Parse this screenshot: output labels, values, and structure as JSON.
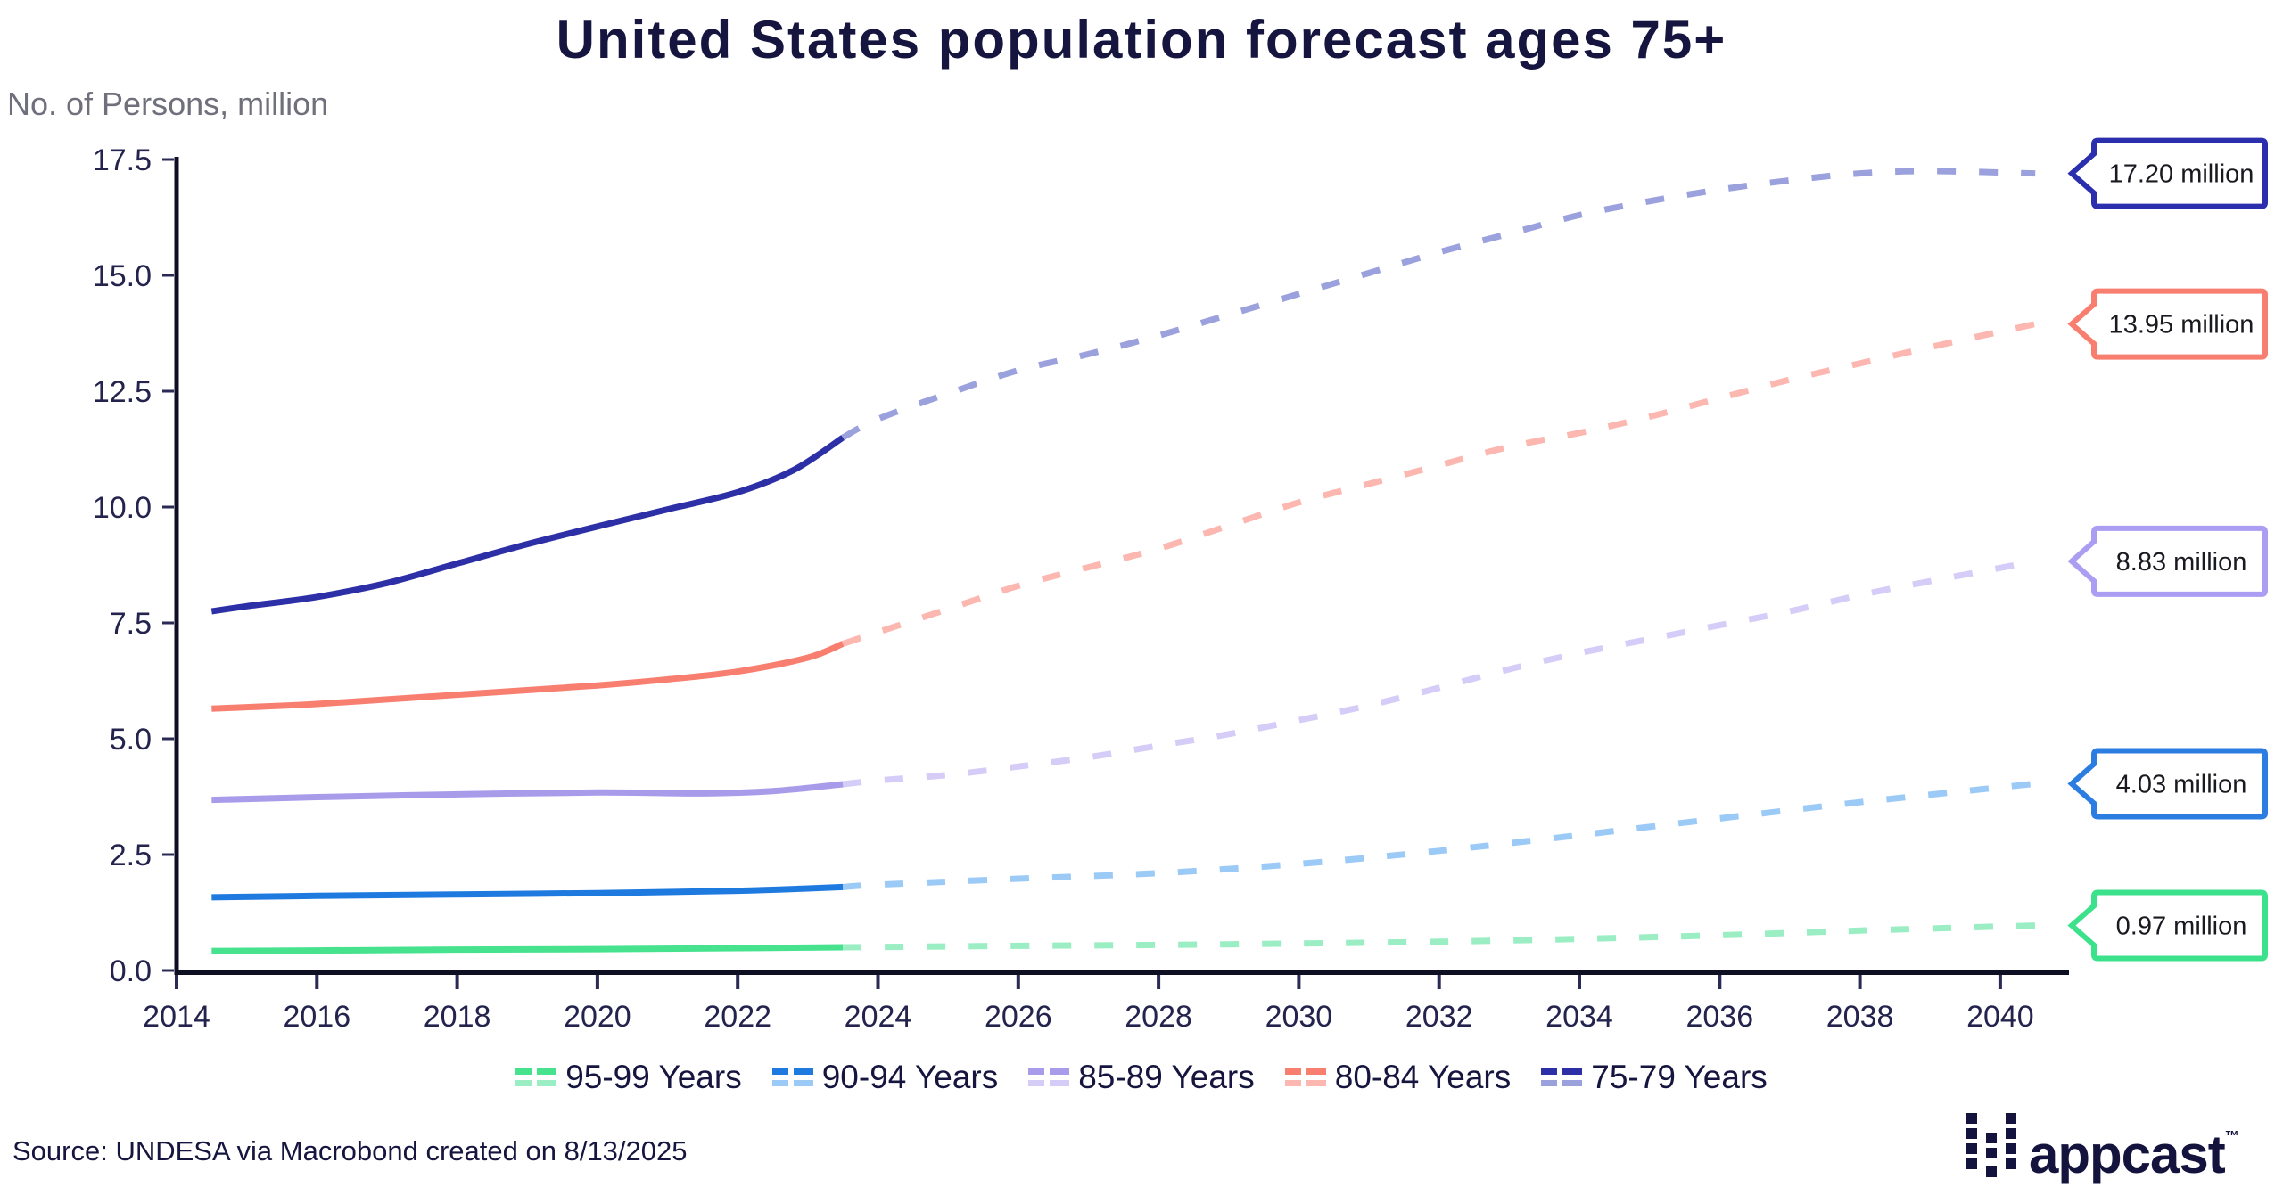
{
  "title": "United States population forecast ages 75+",
  "y_axis_title": "No. of Persons, million",
  "source_note": "Source: UNDESA via Macrobond created on 8/13/2025",
  "logo": {
    "text": "appcast",
    "tm": "™"
  },
  "chart_data": {
    "type": "line",
    "title": "United States population forecast ages 75+",
    "ylabel": "No. of Persons, million",
    "x_ticks": [
      2014,
      2016,
      2018,
      2020,
      2022,
      2024,
      2026,
      2028,
      2030,
      2032,
      2034,
      2036,
      2038,
      2040
    ],
    "y_ticks": [
      0.0,
      2.5,
      5.0,
      7.5,
      10.0,
      12.5,
      15.0,
      17.5
    ],
    "y_tick_labels": [
      "0.0",
      "2.5",
      "5.0",
      "7.5",
      "10.0",
      "12.5",
      "15.0",
      "17.5"
    ],
    "xlim": [
      2014,
      2041
    ],
    "ylim": [
      0,
      17.56
    ],
    "grid": false,
    "legend_position": "bottom",
    "solid_range_years": [
      2014.5,
      2023.5
    ],
    "forecast_range_years": [
      2023.5,
      2040.5
    ],
    "series": [
      {
        "name": "75-79 Years",
        "color": "#2d2fa6",
        "forecast_color": "#9ba1dd",
        "end_label": "17.20 million",
        "end_value": 17.2,
        "callout_border": "#2b2fae",
        "solid_x": [
          2014.5,
          2015,
          2016,
          2017,
          2018,
          2019,
          2020,
          2021,
          2022,
          2022.8,
          2023.5
        ],
        "solid_y": [
          7.75,
          7.86,
          8.06,
          8.36,
          8.78,
          9.2,
          9.58,
          9.95,
          10.32,
          10.8,
          11.5
        ],
        "forecast_x": [
          2023.5,
          2024,
          2025,
          2026,
          2027,
          2028,
          2029,
          2030,
          2031,
          2032,
          2033,
          2034,
          2035,
          2036,
          2037,
          2038,
          2039,
          2040.5
        ],
        "forecast_y": [
          11.5,
          11.9,
          12.45,
          12.95,
          13.3,
          13.7,
          14.15,
          14.6,
          15.05,
          15.5,
          15.9,
          16.3,
          16.6,
          16.85,
          17.05,
          17.2,
          17.25,
          17.2
        ]
      },
      {
        "name": "80-84 Years",
        "color": "#f87e70",
        "forecast_color": "#fbb7b0",
        "end_label": "13.95 million",
        "end_value": 13.95,
        "callout_border": "#f87e70",
        "solid_x": [
          2014.5,
          2016,
          2018,
          2020,
          2021,
          2022,
          2023,
          2023.5
        ],
        "solid_y": [
          5.65,
          5.75,
          5.95,
          6.15,
          6.28,
          6.45,
          6.75,
          7.05
        ],
        "forecast_x": [
          2023.5,
          2024,
          2025,
          2026,
          2027,
          2028,
          2029,
          2030,
          2031,
          2032,
          2033,
          2034,
          2035,
          2036,
          2037,
          2038,
          2039,
          2040.5
        ],
        "forecast_y": [
          7.05,
          7.3,
          7.8,
          8.3,
          8.7,
          9.1,
          9.6,
          10.1,
          10.5,
          10.9,
          11.3,
          11.6,
          11.95,
          12.35,
          12.75,
          13.1,
          13.45,
          13.95
        ]
      },
      {
        "name": "85-89 Years",
        "color": "#a79bea",
        "forecast_color": "#d5cdf7",
        "end_label": "8.83 million",
        "end_value": 8.83,
        "callout_border": "#ab9df2",
        "solid_x": [
          2014.5,
          2016,
          2018,
          2020,
          2021.5,
          2022.5,
          2023.5
        ],
        "solid_y": [
          3.68,
          3.74,
          3.8,
          3.84,
          3.82,
          3.87,
          4.02
        ],
        "forecast_x": [
          2023.5,
          2024,
          2025,
          2026,
          2027,
          2028,
          2029,
          2030,
          2031,
          2032,
          2033,
          2034,
          2035,
          2036,
          2037,
          2038,
          2039,
          2040.5
        ],
        "forecast_y": [
          4.02,
          4.1,
          4.22,
          4.4,
          4.6,
          4.85,
          5.1,
          5.4,
          5.72,
          6.1,
          6.5,
          6.85,
          7.15,
          7.45,
          7.75,
          8.1,
          8.4,
          8.83
        ]
      },
      {
        "name": "90-94 Years",
        "color": "#1f7ae0",
        "forecast_color": "#9ccaf7",
        "end_label": "4.03 million",
        "end_value": 4.03,
        "callout_border": "#2b7de2",
        "solid_x": [
          2014.5,
          2016,
          2018,
          2020,
          2022,
          2023,
          2023.5
        ],
        "solid_y": [
          1.58,
          1.61,
          1.64,
          1.67,
          1.72,
          1.77,
          1.8
        ],
        "forecast_x": [
          2023.5,
          2024,
          2026,
          2028,
          2030,
          2032,
          2034,
          2036,
          2038,
          2040.5
        ],
        "forecast_y": [
          1.8,
          1.85,
          1.98,
          2.1,
          2.3,
          2.58,
          2.92,
          3.28,
          3.63,
          4.03
        ]
      },
      {
        "name": "95-99 Years",
        "color": "#47e28e",
        "forecast_color": "#9beec3",
        "end_label": "0.97 million",
        "end_value": 0.97,
        "callout_border": "#3be28b",
        "solid_x": [
          2014.5,
          2016,
          2018,
          2020,
          2022,
          2023.5
        ],
        "solid_y": [
          0.42,
          0.43,
          0.45,
          0.46,
          0.48,
          0.5
        ],
        "forecast_x": [
          2023.5,
          2026,
          2028,
          2030,
          2032,
          2034,
          2036,
          2038,
          2040.5
        ],
        "forecast_y": [
          0.5,
          0.53,
          0.55,
          0.58,
          0.62,
          0.68,
          0.76,
          0.86,
          0.97
        ]
      }
    ]
  }
}
